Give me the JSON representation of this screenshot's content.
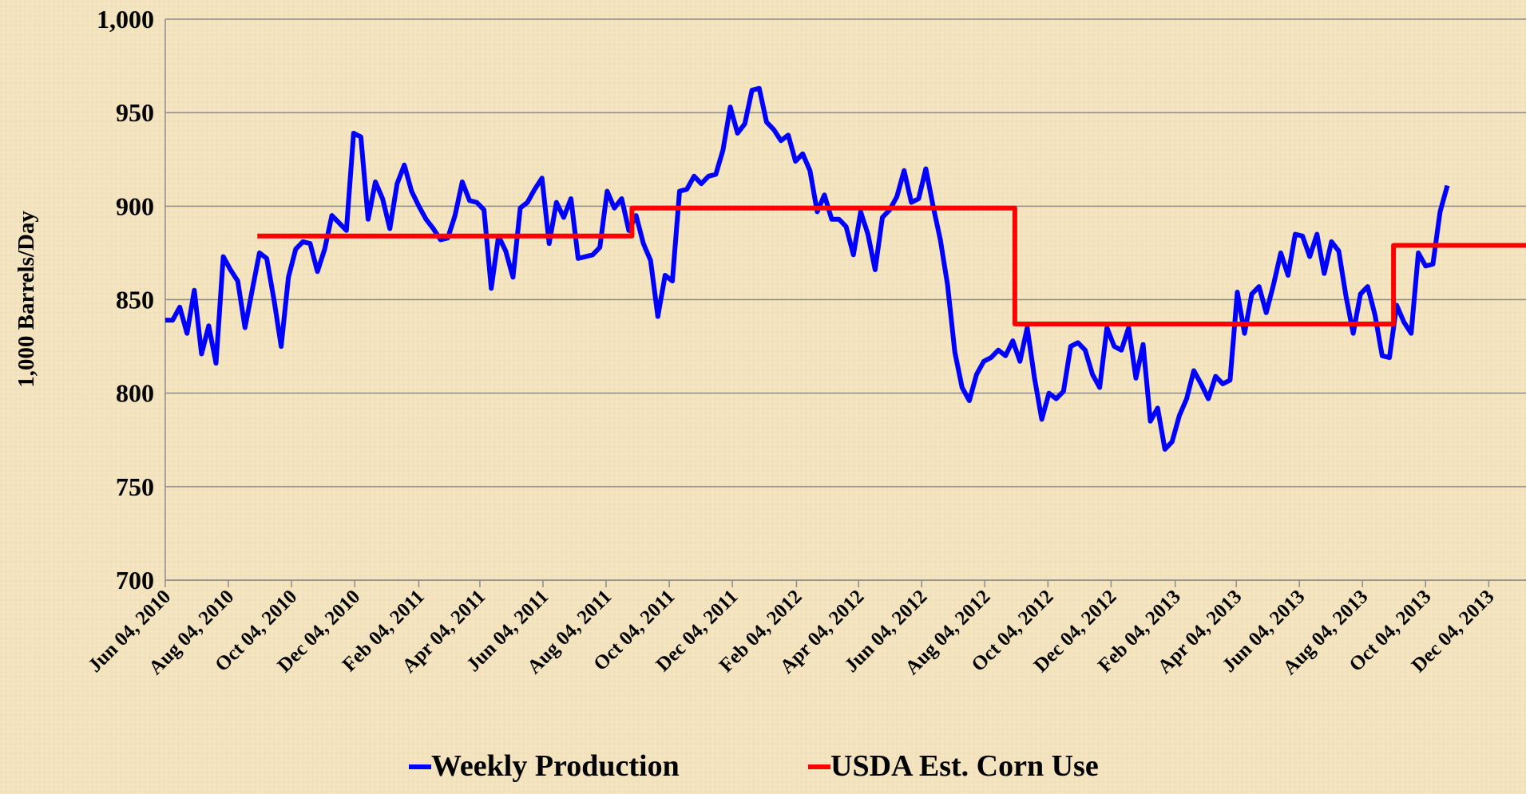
{
  "chart_data": {
    "type": "line",
    "ylabel": "1,000  Barrels/Day",
    "xlim": [
      "2010-06-04",
      "2014-01-09"
    ],
    "xticks": [
      {
        "value": "2010-06-04",
        "label": "Jun 04, 2010"
      },
      {
        "value": "2010-08-04",
        "label": "Aug 04, 2010"
      },
      {
        "value": "2010-10-04",
        "label": "Oct 04, 2010"
      },
      {
        "value": "2010-12-04",
        "label": "Dec 04, 2010"
      },
      {
        "value": "2011-02-04",
        "label": "Feb 04, 2011"
      },
      {
        "value": "2011-04-04",
        "label": "Apr 04, 2011"
      },
      {
        "value": "2011-06-04",
        "label": "Jun 04, 2011"
      },
      {
        "value": "2011-08-04",
        "label": "Aug 04, 2011"
      },
      {
        "value": "2011-10-04",
        "label": "Oct 04, 2011"
      },
      {
        "value": "2011-12-04",
        "label": "Dec 04, 2011"
      },
      {
        "value": "2012-02-04",
        "label": "Feb 04, 2012"
      },
      {
        "value": "2012-04-04",
        "label": "Apr 04, 2012"
      },
      {
        "value": "2012-06-04",
        "label": "Jun 04, 2012"
      },
      {
        "value": "2012-08-04",
        "label": "Aug 04, 2012"
      },
      {
        "value": "2012-10-04",
        "label": "Oct 04, 2012"
      },
      {
        "value": "2012-12-04",
        "label": "Dec 04, 2012"
      },
      {
        "value": "2013-02-04",
        "label": "Feb 04, 2013"
      },
      {
        "value": "2013-04-04",
        "label": "Apr 04, 2013"
      },
      {
        "value": "2013-06-04",
        "label": "Jun 04, 2013"
      },
      {
        "value": "2013-08-04",
        "label": "Aug 04, 2013"
      },
      {
        "value": "2013-10-04",
        "label": "Oct 04, 2013"
      },
      {
        "value": "2013-12-04",
        "label": "Dec 04, 2013"
      }
    ],
    "ylim": [
      700,
      1000
    ],
    "yticks": [
      700,
      750,
      800,
      850,
      900,
      950,
      {
        "value": 1000,
        "label": "1,000"
      }
    ],
    "grid": true,
    "legend": "bottom",
    "series": [
      {
        "name": "Weekly Production",
        "color": "#0000ff",
        "x": [
          "2010-06-04",
          "2010-06-11",
          "2010-06-18",
          "2010-06-25",
          "2010-07-02",
          "2010-07-09",
          "2010-07-16",
          "2010-07-23",
          "2010-07-30",
          "2010-08-06",
          "2010-08-13",
          "2010-08-20",
          "2010-08-27",
          "2010-09-03",
          "2010-09-10",
          "2010-09-17",
          "2010-09-24",
          "2010-10-01",
          "2010-10-08",
          "2010-10-15",
          "2010-10-22",
          "2010-10-29",
          "2010-11-05",
          "2010-11-12",
          "2010-11-19",
          "2010-11-26",
          "2010-12-03",
          "2010-12-10",
          "2010-12-17",
          "2010-12-24",
          "2010-12-31",
          "2011-01-07",
          "2011-01-14",
          "2011-01-21",
          "2011-01-28",
          "2011-02-04",
          "2011-02-11",
          "2011-02-18",
          "2011-02-25",
          "2011-03-04",
          "2011-03-11",
          "2011-03-18",
          "2011-03-25",
          "2011-04-01",
          "2011-04-08",
          "2011-04-15",
          "2011-04-22",
          "2011-04-29",
          "2011-05-06",
          "2011-05-13",
          "2011-05-20",
          "2011-05-27",
          "2011-06-03",
          "2011-06-10",
          "2011-06-17",
          "2011-06-24",
          "2011-07-01",
          "2011-07-08",
          "2011-07-15",
          "2011-07-22",
          "2011-07-29",
          "2011-08-05",
          "2011-08-12",
          "2011-08-19",
          "2011-08-26",
          "2011-09-02",
          "2011-09-09",
          "2011-09-16",
          "2011-09-23",
          "2011-09-30",
          "2011-10-07",
          "2011-10-14",
          "2011-10-21",
          "2011-10-28",
          "2011-11-04",
          "2011-11-11",
          "2011-11-18",
          "2011-11-25",
          "2011-12-02",
          "2011-12-09",
          "2011-12-16",
          "2011-12-23",
          "2011-12-30",
          "2012-01-06",
          "2012-01-13",
          "2012-01-20",
          "2012-01-27",
          "2012-02-03",
          "2012-02-10",
          "2012-02-17",
          "2012-02-24",
          "2012-03-02",
          "2012-03-09",
          "2012-03-16",
          "2012-03-23",
          "2012-03-30",
          "2012-04-06",
          "2012-04-13",
          "2012-04-20",
          "2012-04-27",
          "2012-05-04",
          "2012-05-11",
          "2012-05-18",
          "2012-05-25",
          "2012-06-01",
          "2012-06-08",
          "2012-06-15",
          "2012-06-22",
          "2012-06-29",
          "2012-07-06",
          "2012-07-13",
          "2012-07-20",
          "2012-07-27",
          "2012-08-03",
          "2012-08-10",
          "2012-08-17",
          "2012-08-24",
          "2012-08-31",
          "2012-09-07",
          "2012-09-14",
          "2012-09-21",
          "2012-09-28",
          "2012-10-05",
          "2012-10-12",
          "2012-10-19",
          "2012-10-26",
          "2012-11-02",
          "2012-11-09",
          "2012-11-16",
          "2012-11-23",
          "2012-11-30",
          "2012-12-07",
          "2012-12-14",
          "2012-12-21",
          "2012-12-28",
          "2013-01-04",
          "2013-01-11",
          "2013-01-18",
          "2013-01-25",
          "2013-02-01",
          "2013-02-08",
          "2013-02-15",
          "2013-02-22",
          "2013-03-01",
          "2013-03-08",
          "2013-03-15",
          "2013-03-22",
          "2013-03-29",
          "2013-04-05",
          "2013-04-12",
          "2013-04-19",
          "2013-04-26",
          "2013-05-03",
          "2013-05-10",
          "2013-05-17",
          "2013-05-24",
          "2013-05-31",
          "2013-06-07",
          "2013-06-14",
          "2013-06-21",
          "2013-06-28",
          "2013-07-05",
          "2013-07-12",
          "2013-07-19",
          "2013-07-26",
          "2013-08-02",
          "2013-08-09",
          "2013-08-16",
          "2013-08-23",
          "2013-08-30",
          "2013-09-06",
          "2013-09-13",
          "2013-09-20",
          "2013-09-27",
          "2013-10-04",
          "2013-10-11",
          "2013-10-18",
          "2013-10-25"
        ],
        "values": [
          839,
          839,
          846,
          832,
          855,
          821,
          836,
          816,
          873,
          866,
          860,
          835,
          855,
          875,
          872,
          850,
          825,
          862,
          877,
          881,
          880,
          865,
          877,
          895,
          891,
          887,
          939,
          937,
          893,
          913,
          904,
          888,
          912,
          922,
          908,
          900,
          893,
          888,
          882,
          883,
          895,
          913,
          903,
          902,
          898,
          856,
          884,
          876,
          862,
          899,
          902,
          909,
          915,
          880,
          902,
          894,
          904,
          872,
          873,
          874,
          878,
          908,
          899,
          904,
          887,
          895,
          880,
          871,
          841,
          863,
          860,
          908,
          909,
          916,
          912,
          916,
          917,
          930,
          953,
          939,
          944,
          962,
          963,
          945,
          941,
          935,
          938,
          924,
          928,
          919,
          897,
          906,
          893,
          893,
          889,
          874,
          897,
          885,
          866,
          894,
          898,
          905,
          919,
          902,
          904,
          920,
          900,
          882,
          858,
          822,
          803,
          796,
          810,
          817,
          819,
          823,
          820,
          828,
          817,
          835,
          808,
          786,
          800,
          797,
          801,
          825,
          827,
          823,
          810,
          803,
          835,
          825,
          823,
          835,
          808,
          826,
          785,
          792,
          770,
          774,
          788,
          797,
          812,
          805,
          797,
          809,
          805,
          807,
          854,
          832,
          853,
          857,
          843,
          858,
          875,
          863,
          885,
          884,
          873,
          885,
          864,
          881,
          876,
          852,
          832,
          853,
          857,
          842,
          820,
          819,
          847,
          838,
          832,
          875,
          868,
          869,
          897,
          911
        ]
      },
      {
        "name": "USDA Est. Corn Use",
        "color": "#ff0000",
        "x": [
          "2010-09-01",
          "2011-08-29",
          "2011-08-29",
          "2012-09-02",
          "2012-09-02",
          "2013-09-03",
          "2013-09-03",
          "2014-01-09"
        ],
        "values": [
          884,
          884,
          899,
          899,
          837,
          837,
          879,
          879
        ]
      }
    ]
  }
}
